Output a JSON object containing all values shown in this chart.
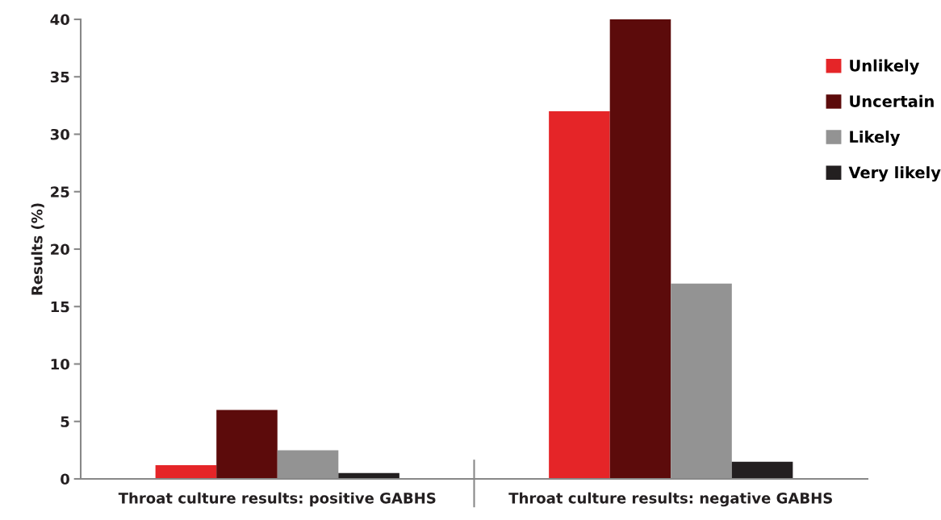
{
  "chart_data": {
    "type": "bar",
    "ylabel": "Results (%)",
    "categories": [
      "Throat culture results: positive GABHS",
      "Throat culture results: negative GABHS"
    ],
    "series": [
      {
        "name": "Unlikely",
        "color": "#e52528",
        "values": [
          1.2,
          32
        ]
      },
      {
        "name": "Uncertain",
        "color": "#5c0b0b",
        "values": [
          6,
          40
        ]
      },
      {
        "name": "Likely",
        "color": "#939393",
        "values": [
          2.5,
          17
        ]
      },
      {
        "name": "Very likely",
        "color": "#231f20",
        "values": [
          0.5,
          1.5
        ]
      }
    ],
    "ylim": [
      0,
      40
    ],
    "yticks": [
      0,
      5,
      10,
      15,
      20,
      25,
      30,
      35,
      40
    ],
    "grid": false,
    "legend": "right"
  }
}
